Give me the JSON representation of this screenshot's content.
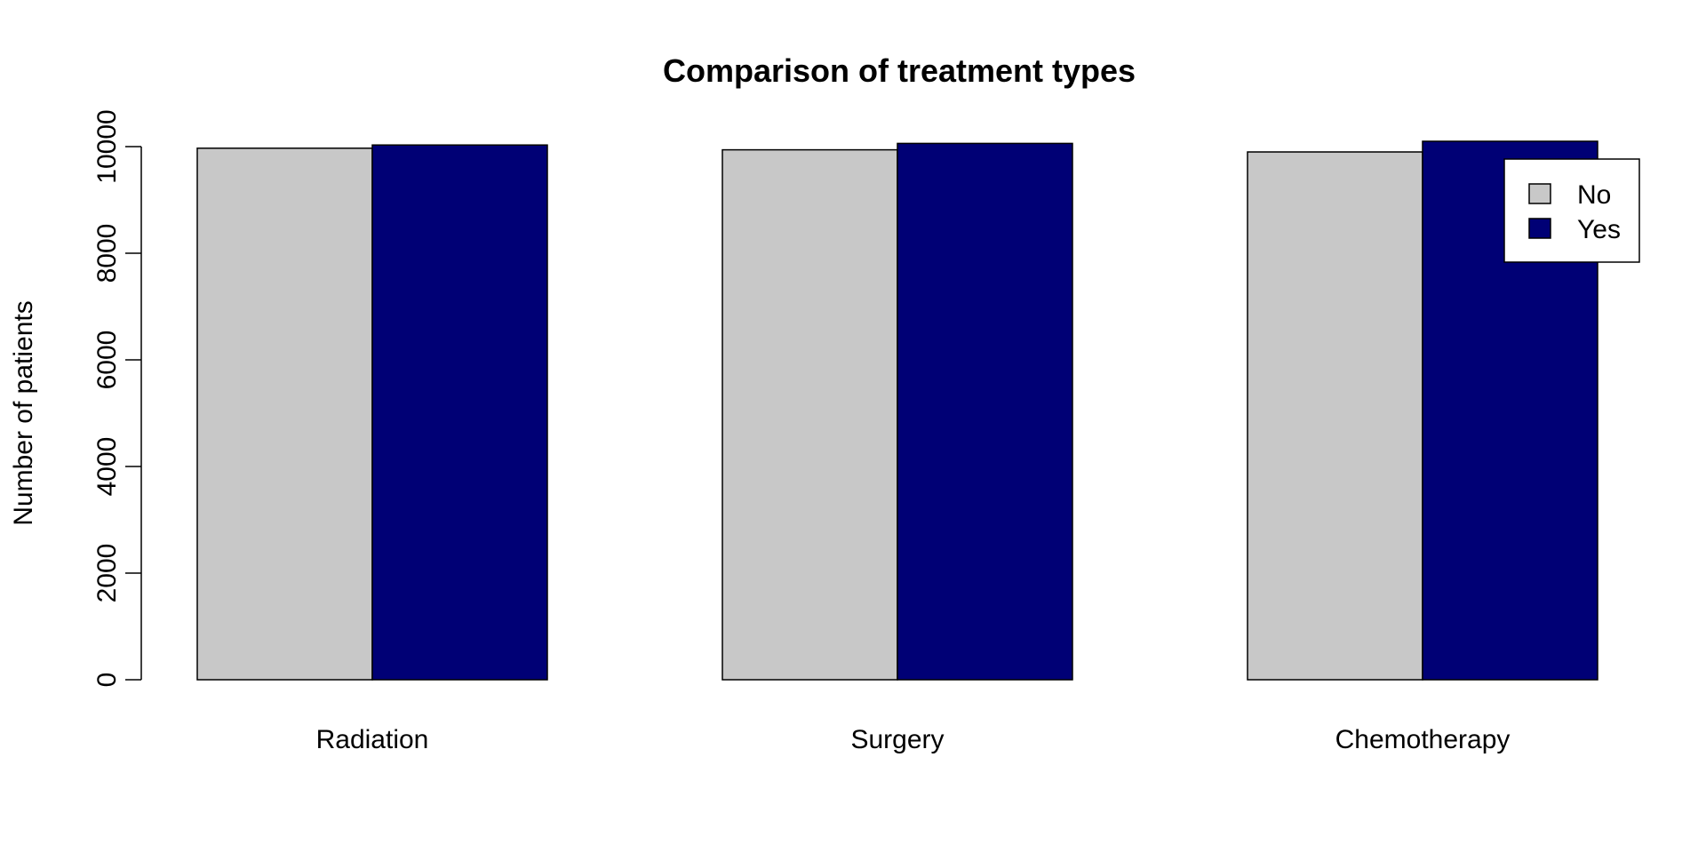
{
  "chart_data": {
    "type": "bar",
    "title": "Comparison of treatment types",
    "xlabel": "",
    "ylabel": "Number of patients",
    "categories": [
      "Radiation",
      "Surgery",
      "Chemotherapy"
    ],
    "series": [
      {
        "name": "No",
        "values": [
          9970,
          9940,
          9900
        ],
        "color": "#c8c8c8"
      },
      {
        "name": "Yes",
        "values": [
          10030,
          10060,
          10100
        ],
        "color": "#000075"
      }
    ],
    "ylim": [
      0,
      10000
    ],
    "yticks": [
      0,
      2000,
      4000,
      6000,
      8000,
      10000
    ],
    "grid": false,
    "legend_position": "top-right"
  }
}
